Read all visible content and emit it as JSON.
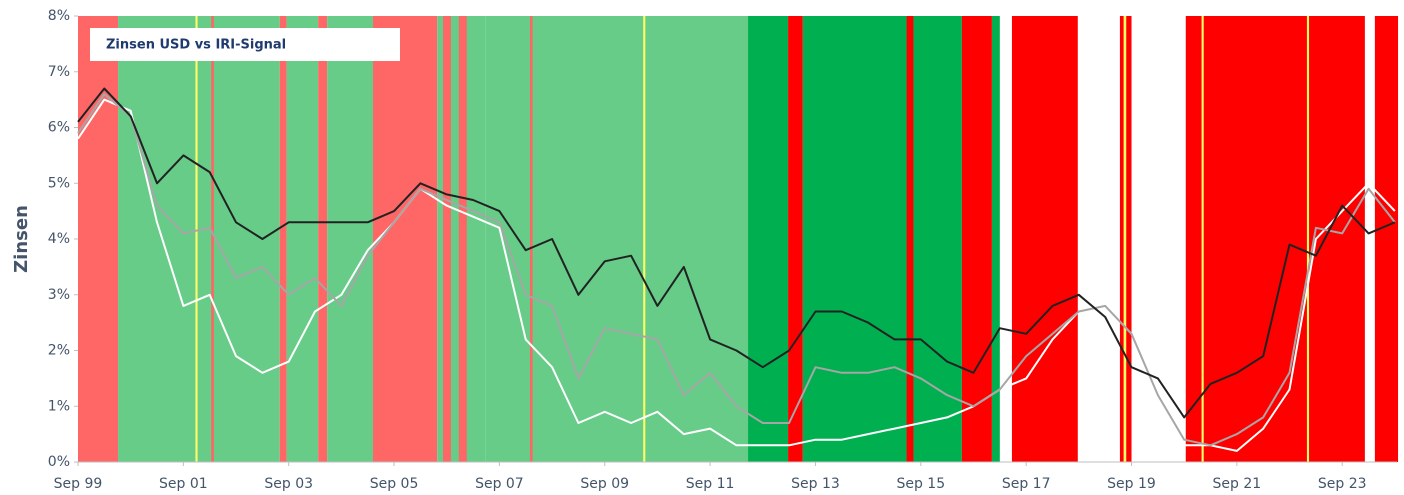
{
  "chart_data": {
    "type": "line",
    "title": "Zinsen USD vs IRI-Signal",
    "y_label": "Zinsen",
    "xlim": [
      1999.67,
      2024.71
    ],
    "xticks": [
      {
        "value": 1999.67,
        "label": "Sep 99"
      },
      {
        "value": 2001.67,
        "label": "Sep 01"
      },
      {
        "value": 2003.67,
        "label": "Sep 03"
      },
      {
        "value": 2005.67,
        "label": "Sep 05"
      },
      {
        "value": 2007.67,
        "label": "Sep 07"
      },
      {
        "value": 2009.67,
        "label": "Sep 09"
      },
      {
        "value": 2011.67,
        "label": "Sep 11"
      },
      {
        "value": 2013.67,
        "label": "Sep 13"
      },
      {
        "value": 2015.67,
        "label": "Sep 15"
      },
      {
        "value": 2017.67,
        "label": "Sep 17"
      },
      {
        "value": 2019.67,
        "label": "Sep 19"
      },
      {
        "value": 2021.67,
        "label": "Sep 21"
      },
      {
        "value": 2023.67,
        "label": "Sep 23"
      }
    ],
    "ylim": [
      0,
      8
    ],
    "yticks": [
      {
        "value": 0,
        "label": "0%"
      },
      {
        "value": 1,
        "label": "1%"
      },
      {
        "value": 2,
        "label": "2%"
      },
      {
        "value": 3,
        "label": "3%"
      },
      {
        "value": 4,
        "label": "4%"
      },
      {
        "value": 5,
        "label": "5%"
      },
      {
        "value": 6,
        "label": "6%"
      },
      {
        "value": 7,
        "label": "7%"
      },
      {
        "value": 8,
        "label": "8%"
      }
    ],
    "bands": [
      {
        "start": 1999.67,
        "end": 2000.43,
        "color": "#ff6666"
      },
      {
        "start": 2000.43,
        "end": 2003.5,
        "color": "#66cc88"
      },
      {
        "start": 2001.9,
        "end": 2001.94,
        "color": "#ffff66"
      },
      {
        "start": 2002.2,
        "end": 2002.25,
        "color": "#ff6666"
      },
      {
        "start": 2003.5,
        "end": 2003.63,
        "color": "#ff6666"
      },
      {
        "start": 2003.63,
        "end": 2004.23,
        "color": "#66cc88"
      },
      {
        "start": 2004.23,
        "end": 2004.4,
        "color": "#ff6666"
      },
      {
        "start": 2004.4,
        "end": 2005.27,
        "color": "#66cc88"
      },
      {
        "start": 2005.27,
        "end": 2006.49,
        "color": "#ff6666"
      },
      {
        "start": 2006.49,
        "end": 2007.4,
        "color": "#66cc88"
      },
      {
        "start": 2006.6,
        "end": 2006.75,
        "color": "#ff6666"
      },
      {
        "start": 2006.9,
        "end": 2007.05,
        "color": "#ff6666"
      },
      {
        "start": 2007.4,
        "end": 2012.39,
        "color": "#66cc88"
      },
      {
        "start": 2008.25,
        "end": 2008.3,
        "color": "#ff6666"
      },
      {
        "start": 2010.4,
        "end": 2010.44,
        "color": "#ffff66"
      },
      {
        "start": 2012.39,
        "end": 2013.15,
        "color": "#00b050"
      },
      {
        "start": 2013.15,
        "end": 2013.43,
        "color": "#ff0000"
      },
      {
        "start": 2013.43,
        "end": 2016.45,
        "color": "#00b050"
      },
      {
        "start": 2015.4,
        "end": 2015.53,
        "color": "#ff0000"
      },
      {
        "start": 2016.45,
        "end": 2017.02,
        "color": "#ff0000"
      },
      {
        "start": 2017.02,
        "end": 2017.17,
        "color": "#00b050"
      },
      {
        "start": 2017.4,
        "end": 2018.65,
        "color": "#ff0000"
      },
      {
        "start": 2019.45,
        "end": 2019.67,
        "color": "#ff0000"
      },
      {
        "start": 2019.52,
        "end": 2019.57,
        "color": "#ffff66"
      },
      {
        "start": 2020.7,
        "end": 2024.1,
        "color": "#ff0000"
      },
      {
        "start": 2021.0,
        "end": 2021.04,
        "color": "#ffff66"
      },
      {
        "start": 2023.0,
        "end": 2023.04,
        "color": "#ffff66"
      },
      {
        "start": 2024.29,
        "end": 2024.73,
        "color": "#ff0000"
      }
    ],
    "x": [
      1999.67,
      2000.17,
      2000.67,
      2001.17,
      2001.67,
      2002.17,
      2002.67,
      2003.17,
      2003.67,
      2004.17,
      2004.67,
      2005.17,
      2005.67,
      2006.17,
      2006.67,
      2007.17,
      2007.67,
      2008.17,
      2008.67,
      2009.17,
      2009.67,
      2010.17,
      2010.67,
      2011.17,
      2011.67,
      2012.17,
      2012.67,
      2013.17,
      2013.67,
      2014.17,
      2014.67,
      2015.17,
      2015.67,
      2016.17,
      2016.67,
      2017.17,
      2017.67,
      2018.17,
      2018.67,
      2019.17,
      2019.67,
      2020.17,
      2020.67,
      2021.17,
      2021.67,
      2022.17,
      2022.67,
      2023.17,
      2023.67,
      2024.17,
      2024.67
    ],
    "series": [
      {
        "color": "#ffffff",
        "values": [
          5.8,
          6.5,
          6.3,
          4.3,
          2.8,
          3.0,
          1.9,
          1.6,
          1.8,
          2.7,
          3.0,
          3.8,
          4.3,
          4.9,
          4.6,
          4.4,
          4.2,
          2.2,
          1.7,
          0.7,
          0.9,
          0.7,
          0.9,
          0.5,
          0.6,
          0.3,
          0.3,
          0.3,
          0.4,
          0.4,
          0.5,
          0.6,
          0.7,
          0.8,
          1.0,
          1.3,
          1.5,
          2.2,
          2.7,
          2.8,
          2.3,
          1.1,
          0.3,
          0.3,
          0.2,
          0.6,
          1.3,
          4.0,
          4.5,
          5.0,
          4.5
        ]
      },
      {
        "color": "#a6a6a6",
        "values": [
          5.9,
          6.6,
          6.2,
          4.6,
          4.1,
          4.2,
          3.3,
          3.5,
          3.0,
          3.3,
          2.8,
          3.7,
          4.3,
          4.9,
          4.7,
          4.5,
          4.3,
          3.0,
          2.8,
          1.5,
          2.4,
          2.3,
          2.2,
          1.2,
          1.6,
          1.0,
          0.7,
          0.7,
          1.7,
          1.6,
          1.6,
          1.7,
          1.5,
          1.2,
          1.0,
          1.3,
          1.9,
          2.3,
          2.7,
          2.8,
          2.3,
          1.2,
          0.4,
          0.3,
          0.5,
          0.8,
          1.6,
          4.2,
          4.1,
          4.9,
          4.3
        ]
      },
      {
        "color": "#222222",
        "values": [
          6.1,
          6.7,
          6.2,
          5.0,
          5.5,
          5.2,
          4.3,
          4.0,
          4.3,
          4.3,
          4.3,
          4.3,
          4.5,
          5.0,
          4.8,
          4.7,
          4.5,
          3.8,
          4.0,
          3.0,
          3.6,
          3.7,
          2.8,
          3.5,
          2.2,
          2.0,
          1.7,
          2.0,
          2.7,
          2.7,
          2.5,
          2.2,
          2.2,
          1.8,
          1.6,
          2.4,
          2.3,
          2.8,
          3.0,
          2.6,
          1.7,
          1.5,
          0.8,
          1.4,
          1.6,
          1.9,
          3.9,
          3.7,
          4.6,
          4.1,
          4.3
        ]
      }
    ]
  }
}
